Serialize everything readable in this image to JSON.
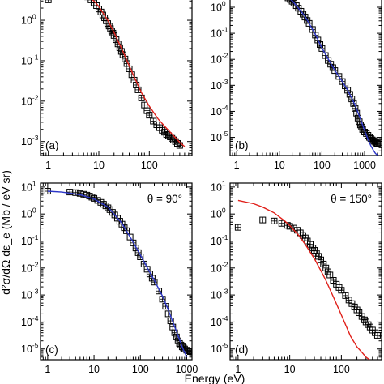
{
  "figure": {
    "xlabel": "Energy (eV)",
    "ylabel": "d²σ/dΩ dε_e (Mb / eV sr)"
  },
  "chart_data": [
    {
      "type": "scatter",
      "panel": "(a)",
      "angle_label": "",
      "xscale": "log",
      "yscale": "log",
      "xlim": [
        0.7,
        700
      ],
      "ylim": [
        0.00045,
        8
      ],
      "xticks": [
        {
          "v": 1,
          "t": "1"
        },
        {
          "v": 10,
          "t": "10"
        },
        {
          "v": 100,
          "t": "100"
        }
      ],
      "yticks": [
        {
          "v": 0.001,
          "m": "10",
          "e": "-3"
        },
        {
          "v": 0.01,
          "m": "10",
          "e": "-2"
        },
        {
          "v": 0.1,
          "m": "10",
          "e": "-1"
        },
        {
          "v": 1,
          "m": "10",
          "e": "0"
        }
      ],
      "legend_placement": "none",
      "series": [
        {
          "kind": "points",
          "color": "#000000",
          "x": [
            1,
            3,
            4,
            5,
            6,
            7,
            8,
            9,
            10,
            11,
            12,
            13,
            14,
            15,
            16,
            17,
            18,
            19,
            20,
            22,
            24,
            26,
            28,
            30,
            33,
            36,
            40,
            45,
            50,
            55,
            60,
            70,
            80,
            90,
            100,
            120,
            140,
            160,
            180,
            200,
            220,
            240,
            260,
            280,
            300,
            330,
            360,
            400
          ],
          "y": [
            3.2,
            4.9,
            4.8,
            4.4,
            3.8,
            3.2,
            2.7,
            2.3,
            1.9,
            1.6,
            1.35,
            1.15,
            0.97,
            0.83,
            0.72,
            0.62,
            0.54,
            0.48,
            0.42,
            0.33,
            0.26,
            0.21,
            0.17,
            0.14,
            0.11,
            0.085,
            0.063,
            0.045,
            0.033,
            0.025,
            0.019,
            0.012,
            0.008,
            0.0058,
            0.0045,
            0.0032,
            0.0026,
            0.0022,
            0.0019,
            0.0017,
            0.0015,
            0.0014,
            0.0013,
            0.0012,
            0.0011,
            0.001,
            0.0009,
            0.0008
          ]
        },
        {
          "kind": "line",
          "color": "#e0201a",
          "x": [
            3,
            5,
            8,
            10,
            15,
            20,
            30,
            40,
            50,
            70,
            100,
            150,
            200,
            300,
            400,
            500
          ],
          "y": [
            5.2,
            4.6,
            3.0,
            2.2,
            1.0,
            0.5,
            0.17,
            0.075,
            0.04,
            0.016,
            0.0075,
            0.0036,
            0.0024,
            0.0014,
            0.00095,
            0.00075
          ]
        }
      ]
    },
    {
      "type": "scatter",
      "panel": "(b)",
      "angle_label": "",
      "xscale": "log",
      "yscale": "log",
      "xlim": [
        0.7,
        2500
      ],
      "ylim": [
        2e-06,
        8
      ],
      "xticks": [
        {
          "v": 1,
          "t": "1"
        },
        {
          "v": 10,
          "t": "10"
        },
        {
          "v": 100,
          "t": "100"
        },
        {
          "v": 1000,
          "t": "1000"
        }
      ],
      "yticks": [
        {
          "v": 1e-05,
          "m": "10",
          "e": "-5"
        },
        {
          "v": 0.0001,
          "m": "10",
          "e": "-4"
        },
        {
          "v": 0.001,
          "m": "10",
          "e": "-3"
        },
        {
          "v": 0.01,
          "m": "10",
          "e": "-2"
        },
        {
          "v": 0.1,
          "m": "10",
          "e": "-1"
        },
        {
          "v": 1,
          "m": "10",
          "e": "0"
        }
      ],
      "legend_placement": "none",
      "series": [
        {
          "kind": "points",
          "color": "#000000",
          "x": [
            1,
            3,
            4,
            5,
            6,
            7,
            8,
            9,
            10,
            12,
            14,
            16,
            18,
            20,
            22,
            25,
            28,
            32,
            36,
            40,
            45,
            50,
            60,
            70,
            80,
            90,
            100,
            120,
            140,
            160,
            180,
            200,
            250,
            300,
            350,
            400,
            450,
            500,
            550,
            600,
            650,
            700,
            750,
            800,
            850,
            900,
            1000,
            1100,
            1200,
            1300,
            1400,
            1500,
            1600,
            1700,
            1800,
            1900,
            2000
          ],
          "y": [
            7,
            6.5,
            6.2,
            5.8,
            5.4,
            5.0,
            4.6,
            4.2,
            3.8,
            3.2,
            2.7,
            2.3,
            2.0,
            1.7,
            1.45,
            1.15,
            0.92,
            0.7,
            0.54,
            0.42,
            0.31,
            0.24,
            0.14,
            0.085,
            0.055,
            0.037,
            0.026,
            0.014,
            0.009,
            0.0065,
            0.0048,
            0.0037,
            0.0022,
            0.0014,
            0.00095,
            0.00065,
            0.00045,
            0.0003,
            0.0002,
            0.00013,
            8.5e-05,
            5.5e-05,
            4e-05,
            3e-05,
            2.5e-05,
            2e-05,
            1.6e-05,
            1.4e-05,
            1.2e-05,
            1e-05,
            9e-06,
            8e-06,
            7.5e-06,
            7e-06,
            6.5e-06,
            6e-06,
            5.8e-06
          ]
        },
        {
          "kind": "line",
          "color": "#2b35c8",
          "x": [
            5,
            10,
            20,
            40,
            70,
            100,
            150,
            200,
            300,
            400,
            500,
            600,
            700,
            800,
            1000,
            1200,
            1400,
            1600,
            1800,
            2000
          ],
          "y": [
            6,
            4.0,
            1.8,
            0.45,
            0.09,
            0.027,
            0.0085,
            0.0038,
            0.0014,
            0.00065,
            0.00032,
            0.00017,
            9e-05,
            5e-05,
            1.8e-05,
            8.5e-06,
            4.8e-06,
            3.2e-06,
            2.4e-06,
            2.1e-06
          ]
        }
      ]
    },
    {
      "type": "scatter",
      "panel": "(c)",
      "angle_label": "θ = 90°",
      "xscale": "log",
      "yscale": "log",
      "xlim": [
        0.7,
        1300
      ],
      "ylim": [
        4e-06,
        14
      ],
      "xticks": [
        {
          "v": 1,
          "t": "1"
        },
        {
          "v": 10,
          "t": "10"
        },
        {
          "v": 100,
          "t": "100"
        },
        {
          "v": 1000,
          "t": "1000"
        }
      ],
      "yticks": [
        {
          "v": 1e-05,
          "m": "10",
          "e": "-5"
        },
        {
          "v": 0.0001,
          "m": "10",
          "e": "-4"
        },
        {
          "v": 0.001,
          "m": "10",
          "e": "-3"
        },
        {
          "v": 0.01,
          "m": "10",
          "e": "-2"
        },
        {
          "v": 0.1,
          "m": "10",
          "e": "-1"
        },
        {
          "v": 1,
          "m": "10",
          "e": "0"
        },
        {
          "v": 10,
          "m": "10",
          "e": "1"
        }
      ],
      "legend_placement": "none",
      "series": [
        {
          "kind": "points",
          "color": "#000000",
          "x": [
            1,
            3,
            4,
            5,
            6,
            7,
            8,
            9,
            10,
            12,
            14,
            16,
            18,
            20,
            22,
            25,
            28,
            32,
            36,
            40,
            45,
            50,
            60,
            70,
            80,
            90,
            100,
            120,
            140,
            160,
            180,
            200,
            250,
            300,
            350,
            400,
            450,
            500,
            550,
            600,
            650,
            700,
            750,
            800,
            850,
            900,
            1000,
            1100,
            1200
          ],
          "y": [
            7,
            6.5,
            6.2,
            5.8,
            5.4,
            5.0,
            4.6,
            4.2,
            3.8,
            3.2,
            2.7,
            2.3,
            2.0,
            1.7,
            1.45,
            1.15,
            0.92,
            0.7,
            0.54,
            0.42,
            0.31,
            0.24,
            0.14,
            0.085,
            0.055,
            0.037,
            0.026,
            0.014,
            0.009,
            0.006,
            0.0042,
            0.003,
            0.0014,
            0.0007,
            0.00038,
            0.0002,
            0.00011,
            6.5e-05,
            4e-05,
            2.8e-05,
            2e-05,
            1.6e-05,
            1.4e-05,
            1.2e-05,
            1.1e-05,
            1e-05,
            9e-06,
            8.5e-06,
            8e-06
          ]
        },
        {
          "kind": "line",
          "color": "#2b35c8",
          "x": [
            1,
            2,
            5,
            10,
            20,
            40,
            70,
            100,
            150,
            200,
            300,
            400,
            500,
            600,
            700,
            800,
            900,
            1000
          ],
          "y": [
            7,
            6.5,
            5.2,
            3.6,
            1.8,
            0.45,
            0.09,
            0.03,
            0.0085,
            0.0035,
            0.0009,
            0.00028,
            0.0001,
            4.5e-05,
            2.2e-05,
            1.2e-05,
            7.5e-06,
            5e-06
          ]
        }
      ]
    },
    {
      "type": "scatter",
      "panel": "(d)",
      "angle_label": "θ = 150°",
      "xscale": "log",
      "yscale": "log",
      "xlim": [
        0.7,
        600
      ],
      "ylim": [
        4e-06,
        14
      ],
      "xticks": [
        {
          "v": 1,
          "t": "1"
        },
        {
          "v": 10,
          "t": "10"
        },
        {
          "v": 100,
          "t": "100"
        }
      ],
      "yticks": [
        {
          "v": 1e-05,
          "m": "10",
          "e": "-5"
        },
        {
          "v": 0.0001,
          "m": "10",
          "e": "-4"
        },
        {
          "v": 0.001,
          "m": "10",
          "e": "-3"
        },
        {
          "v": 0.01,
          "m": "10",
          "e": "-2"
        },
        {
          "v": 0.1,
          "m": "10",
          "e": "-1"
        },
        {
          "v": 1,
          "m": "10",
          "e": "0"
        },
        {
          "v": 10,
          "m": "10",
          "e": "1"
        }
      ],
      "legend_placement": "none",
      "series": [
        {
          "kind": "points",
          "color": "#000000",
          "x": [
            1,
            3,
            5,
            7,
            9,
            10,
            12,
            14,
            16,
            18,
            20,
            22,
            25,
            28,
            30,
            33,
            36,
            40,
            45,
            50,
            55,
            60,
            70,
            80,
            90,
            100,
            120,
            140,
            160,
            180,
            200,
            220,
            250,
            280,
            300,
            330,
            360,
            400,
            450,
            500
          ],
          "y": [
            0.32,
            0.6,
            0.55,
            0.45,
            0.38,
            0.35,
            0.3,
            0.25,
            0.2,
            0.16,
            0.13,
            0.1,
            0.075,
            0.055,
            0.045,
            0.035,
            0.027,
            0.02,
            0.014,
            0.01,
            0.0072,
            0.0055,
            0.0035,
            0.0025,
            0.0019,
            0.0015,
            0.00095,
            0.00065,
            0.00048,
            0.00036,
            0.00028,
            0.00022,
            0.00016,
            0.00012,
            0.0001,
            8e-05,
            6.5e-05,
            5e-05,
            4e-05,
            3.2e-05
          ]
        },
        {
          "kind": "line",
          "color": "#e0201a",
          "x": [
            1,
            2,
            3,
            5,
            8,
            10,
            15,
            20,
            30,
            40,
            50,
            70,
            100,
            150,
            200,
            250,
            300,
            350
          ],
          "y": [
            3.2,
            2.4,
            1.8,
            1.1,
            0.55,
            0.38,
            0.16,
            0.075,
            0.022,
            0.008,
            0.0035,
            0.00085,
            0.00018,
            3e-05,
            1.2e-05,
            7.5e-06,
            5e-06,
            4e-06
          ]
        }
      ]
    }
  ]
}
